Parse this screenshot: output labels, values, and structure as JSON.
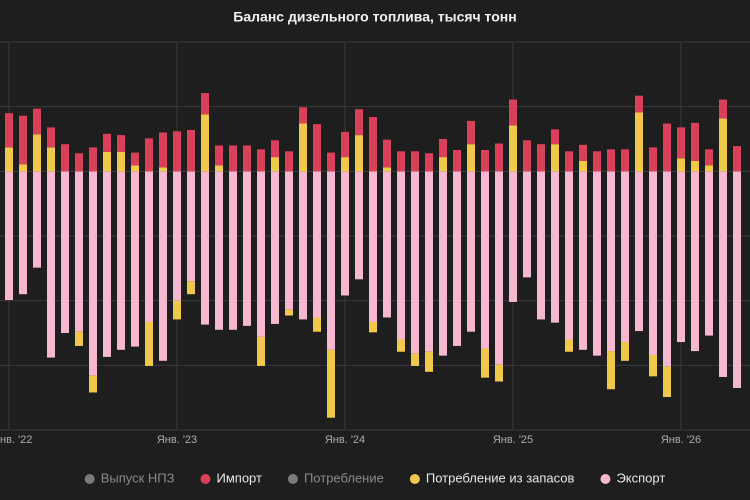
{
  "chart_data": {
    "type": "stacked-bar",
    "title": "Баланс дизельного топлива, тысяч тонн",
    "categories": [
      "нв. '22",
      null,
      null,
      null,
      null,
      null,
      null,
      null,
      null,
      null,
      null,
      null,
      "Янв. '23",
      null,
      null,
      null,
      null,
      null,
      null,
      null,
      null,
      null,
      null,
      null,
      "Янв. '24",
      null,
      null,
      null,
      null,
      null,
      null,
      null,
      null,
      null,
      null,
      null,
      "Янв. '25",
      null,
      null,
      null,
      null,
      null,
      null,
      null,
      null,
      null,
      null,
      null,
      "Янв. '26",
      null,
      null,
      null,
      null
    ],
    "series": [
      {
        "name": "Выпуск НПЗ",
        "color": "#7a7a7a",
        "visible": false,
        "values": [
          null,
          null,
          null,
          null,
          null,
          null,
          null,
          null,
          null,
          null,
          null,
          null,
          null,
          null,
          null,
          null,
          null,
          null,
          null,
          null,
          null,
          null,
          null,
          null,
          null,
          null,
          null,
          null,
          null,
          null,
          null,
          null,
          null,
          null,
          null,
          null,
          null,
          null,
          null,
          null,
          null,
          null,
          null,
          null,
          null,
          null,
          null,
          null,
          null,
          null,
          null,
          null,
          null
        ]
      },
      {
        "name": "Импорт",
        "color": "#d9405a",
        "visible": true,
        "values": [
          530,
          750,
          400,
          310,
          420,
          280,
          370,
          280,
          260,
          200,
          510,
          540,
          620,
          640,
          330,
          310,
          400,
          400,
          340,
          260,
          310,
          250,
          730,
          290,
          390,
          400,
          840,
          430,
          310,
          310,
          280,
          280,
          330,
          360,
          330,
          430,
          400,
          480,
          420,
          230,
          310,
          250,
          310,
          340,
          340,
          260,
          370,
          740,
          480,
          590,
          250,
          290,
          390
        ]
      },
      {
        "name": "Потребление",
        "color": "#7a7a7a",
        "visible": false,
        "values": [
          null,
          null,
          null,
          null,
          null,
          null,
          null,
          null,
          null,
          null,
          null,
          null,
          null,
          null,
          null,
          null,
          null,
          null,
          null,
          null,
          null,
          null,
          null,
          null,
          null,
          null,
          null,
          null,
          null,
          null,
          null,
          null,
          null,
          null,
          null,
          null,
          null,
          null,
          null,
          null,
          null,
          null,
          null,
          null,
          null,
          null,
          null,
          null,
          null,
          null,
          null,
          null,
          null
        ]
      },
      {
        "name": "Потребление из запасов",
        "color": "#f0c94c",
        "visible": true,
        "values": [
          370,
          110,
          570,
          370,
          null,
          -220,
          -260,
          300,
          300,
          90,
          -680,
          60,
          -290,
          -200,
          880,
          90,
          null,
          null,
          -450,
          220,
          -90,
          740,
          -220,
          -1050,
          220,
          560,
          -160,
          60,
          -190,
          -190,
          -310,
          220,
          null,
          420,
          -450,
          -260,
          710,
          null,
          null,
          420,
          -190,
          160,
          null,
          -590,
          -290,
          910,
          -330,
          -470,
          200,
          160,
          90,
          820,
          null
        ]
      },
      {
        "name": "Экспорт",
        "color": "#f5b8d0",
        "visible": true,
        "values": [
          -1990,
          -1900,
          -1490,
          -2880,
          -2500,
          -2480,
          -3160,
          -2870,
          -2760,
          -2710,
          -2330,
          -2930,
          -2000,
          -1700,
          -2370,
          -2450,
          -2450,
          -2390,
          -2560,
          -2360,
          -2140,
          -2290,
          -2260,
          -2760,
          -1920,
          -1670,
          -2330,
          -2260,
          -2600,
          -2820,
          -2790,
          -2850,
          -2700,
          -2480,
          -2740,
          -2990,
          -2020,
          -1640,
          -2290,
          -2340,
          -2600,
          -2760,
          -2850,
          -2780,
          -2640,
          -2470,
          -2840,
          -3020,
          -2640,
          -2780,
          -2540,
          -3180,
          -3350
        ]
      }
    ],
    "ylim": [
      -4000,
      2000
    ],
    "yticks": [
      -4000,
      -3000,
      -2000,
      -1000,
      0,
      1000,
      2000
    ],
    "grid": true
  }
}
